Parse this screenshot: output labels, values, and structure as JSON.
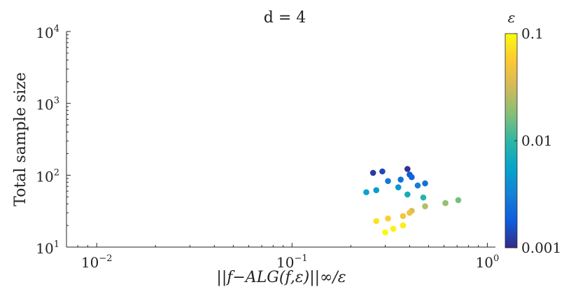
{
  "chart_data": {
    "type": "scatter",
    "title": "d = 4",
    "xlabel": "||f−ALG(f,ε)||∞/ε",
    "ylabel": "Total sample size",
    "x_scale": "log",
    "y_scale": "log",
    "xlim": [
      0.007,
      1.1
    ],
    "ylim": [
      10,
      10000
    ],
    "x_ticks": [
      {
        "value": 0.01,
        "base": "10",
        "exp": "−2"
      },
      {
        "value": 0.1,
        "base": "10",
        "exp": "−1"
      },
      {
        "value": 1,
        "base": "10",
        "exp": "0"
      }
    ],
    "y_ticks": [
      {
        "value": 10,
        "base": "10",
        "exp": "1"
      },
      {
        "value": 100,
        "base": "10",
        "exp": "2"
      },
      {
        "value": 1000,
        "base": "10",
        "exp": "3"
      },
      {
        "value": 10000,
        "base": "10",
        "exp": "4"
      }
    ],
    "colorbar": {
      "label": "ε",
      "scale": "log",
      "range": [
        0.001,
        0.1
      ],
      "colormap": "parula",
      "tick_labels": [
        {
          "value": 0.1,
          "label": "0.1"
        },
        {
          "value": 0.01,
          "label": "0.01"
        },
        {
          "value": 0.001,
          "label": "0.001"
        }
      ]
    },
    "points": [
      {
        "x": 0.26,
        "y": 108,
        "eps": 0.0012
      },
      {
        "x": 0.29,
        "y": 113,
        "eps": 0.0014
      },
      {
        "x": 0.39,
        "y": 122,
        "eps": 0.0011
      },
      {
        "x": 0.4,
        "y": 102,
        "eps": 0.0017
      },
      {
        "x": 0.41,
        "y": 94,
        "eps": 0.002
      },
      {
        "x": 0.36,
        "y": 87,
        "eps": 0.0025
      },
      {
        "x": 0.31,
        "y": 83,
        "eps": 0.0028
      },
      {
        "x": 0.48,
        "y": 77,
        "eps": 0.0025
      },
      {
        "x": 0.44,
        "y": 72,
        "eps": 0.003
      },
      {
        "x": 0.35,
        "y": 68,
        "eps": 0.0045
      },
      {
        "x": 0.27,
        "y": 62,
        "eps": 0.005
      },
      {
        "x": 0.24,
        "y": 58,
        "eps": 0.0055
      },
      {
        "x": 0.39,
        "y": 54,
        "eps": 0.007
      },
      {
        "x": 0.47,
        "y": 49,
        "eps": 0.009
      },
      {
        "x": 0.71,
        "y": 45,
        "eps": 0.016
      },
      {
        "x": 0.61,
        "y": 41,
        "eps": 0.02
      },
      {
        "x": 0.48,
        "y": 37,
        "eps": 0.025
      },
      {
        "x": 0.41,
        "y": 32,
        "eps": 0.035
      },
      {
        "x": 0.4,
        "y": 30,
        "eps": 0.045
      },
      {
        "x": 0.37,
        "y": 27,
        "eps": 0.05
      },
      {
        "x": 0.31,
        "y": 25,
        "eps": 0.06
      },
      {
        "x": 0.27,
        "y": 23,
        "eps": 0.075
      },
      {
        "x": 0.37,
        "y": 20,
        "eps": 0.085
      },
      {
        "x": 0.33,
        "y": 18,
        "eps": 0.09
      },
      {
        "x": 0.3,
        "y": 16,
        "eps": 0.1
      }
    ]
  }
}
